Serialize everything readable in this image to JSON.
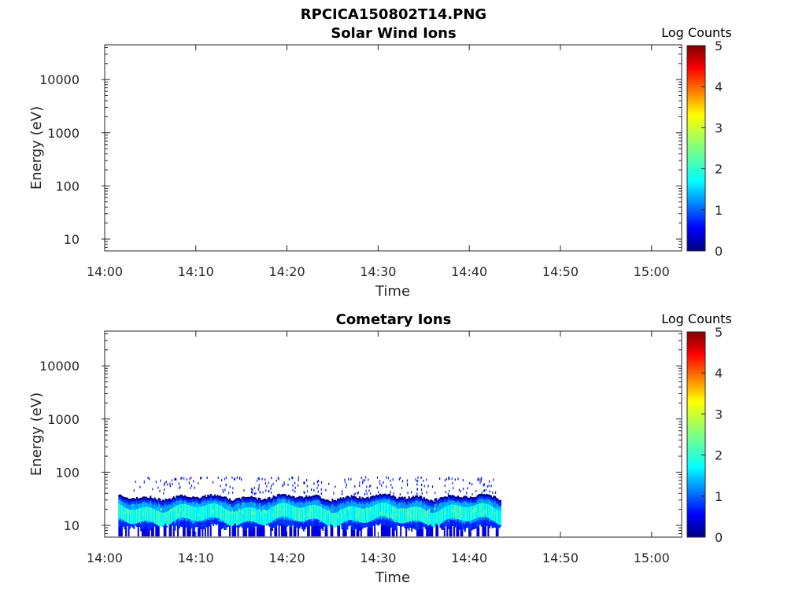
{
  "figure_title": "RPCICA150802T14.PNG",
  "chart_data": [
    {
      "type": "heatmap",
      "title": "Solar Wind Ions",
      "xlabel": "Time",
      "ylabel": "Energy (eV)",
      "x_tick_labels": [
        "14:00",
        "14:10",
        "14:20",
        "14:30",
        "14:40",
        "14:50",
        "15:00"
      ],
      "x_tick_minutes": [
        0,
        10,
        20,
        30,
        40,
        50,
        60
      ],
      "xlim_minutes": [
        0,
        63.3
      ],
      "y_scale": "log",
      "ylim": [
        6,
        45000
      ],
      "y_ticks": [
        10,
        100,
        1000,
        10000
      ],
      "y_tick_labels": [
        "10",
        "100",
        "1000",
        "10000"
      ],
      "colorbar": {
        "label": "Log Counts",
        "min": 0,
        "max": 5,
        "ticks": [
          "0",
          "1",
          "2",
          "3",
          "4",
          "5"
        ],
        "colormap": "jet"
      },
      "grid": false,
      "bands": []
    },
    {
      "type": "heatmap",
      "title": "Cometary Ions",
      "xlabel": "Time",
      "ylabel": "Energy (eV)",
      "x_tick_labels": [
        "14:00",
        "14:10",
        "14:20",
        "14:30",
        "14:40",
        "14:50",
        "15:00"
      ],
      "x_tick_minutes": [
        0,
        10,
        20,
        30,
        40,
        50,
        60
      ],
      "xlim_minutes": [
        0,
        63.3
      ],
      "y_scale": "log",
      "ylim": [
        6,
        45000
      ],
      "y_ticks": [
        10,
        100,
        1000,
        10000
      ],
      "y_tick_labels": [
        "10",
        "100",
        "1000",
        "10000"
      ],
      "colorbar": {
        "label": "Log Counts",
        "min": 0,
        "max": 5,
        "ticks": [
          "0",
          "1",
          "2",
          "3",
          "4",
          "5"
        ],
        "colormap": "jet"
      },
      "grid": false,
      "data_time_range_minutes": [
        1.5,
        43.5
      ],
      "bands": [
        {
          "t0": 1.5,
          "t1": 43.5,
          "e_low": 8,
          "e_high": 33,
          "level": 0.9
        },
        {
          "t0": 1.5,
          "t1": 43.5,
          "e_low": 13,
          "e_high": 24,
          "level": 1.8
        },
        {
          "t0": 2,
          "t1": 43,
          "e_low": 15,
          "e_high": 20,
          "level": 2.2
        }
      ],
      "sparse_counts": {
        "t0": 3,
        "t1": 43,
        "e_low": 40,
        "e_high": 85,
        "level": 0.5
      }
    }
  ]
}
